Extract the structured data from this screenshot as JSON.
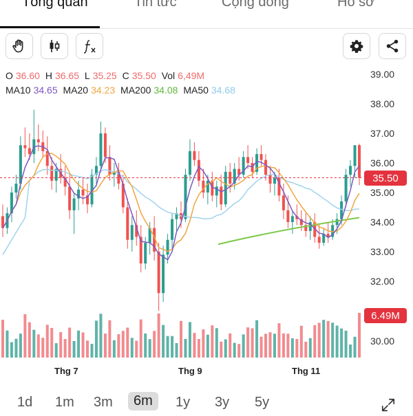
{
  "tabs": [
    {
      "label": "Tổng quan",
      "active": true
    },
    {
      "label": "Tin tức",
      "active": false
    },
    {
      "label": "Cộng đồng",
      "active": false
    },
    {
      "label": "Hồ sơ",
      "active": false
    }
  ],
  "toolbar": {
    "left_icons": [
      "hand-icon",
      "candlestick-icon",
      "function-icon"
    ],
    "right_icons": [
      "gear-icon",
      "share-icon"
    ]
  },
  "ohlc": {
    "o_label": "O",
    "o_value": "36.60",
    "h_label": "H",
    "h_value": "36.65",
    "l_label": "L",
    "l_value": "35.25",
    "c_label": "C",
    "c_value": "35.50",
    "vol_label": "Vol",
    "vol_value": "6,49M"
  },
  "ma": {
    "ma10_label": "MA10",
    "ma10_value": "34.65",
    "ma20_label": "MA20",
    "ma20_value": "34.23",
    "ma200_label": "MA200",
    "ma200_value": "34.08",
    "ma50_label": "MA50",
    "ma50_value": "34.68"
  },
  "colors": {
    "up": "#2a9d8f",
    "down": "#ef5350",
    "vol_up": "#5fb3a8",
    "vol_down": "#f28b8f",
    "ma10": "#7e57c2",
    "ma20": "#f0a540",
    "ma200": "#7cc94a",
    "ma50": "#9fd3ee",
    "price_line": "#e3333e",
    "o_val": "#ef6b6b"
  },
  "price_tag": "35.50",
  "volume_tag": "6.49M",
  "chart_data": {
    "type": "candlestick",
    "y_axis_ticks": [
      "39.00",
      "38.00",
      "37.00",
      "36.00",
      "35.00",
      "34.00",
      "33.00",
      "32.00",
      "30.00"
    ],
    "x_labels": [
      "Thg 7",
      "Thg 9",
      "Thg 11"
    ],
    "ylim": [
      30.0,
      39.0
    ],
    "current_price": 35.5,
    "candles_ohlc_approx": [
      [
        34.2,
        34.6,
        33.5,
        33.8
      ],
      [
        33.8,
        34.5,
        33.6,
        34.3
      ],
      [
        34.3,
        35.2,
        34.0,
        35.0
      ],
      [
        35.0,
        35.6,
        34.8,
        35.3
      ],
      [
        35.3,
        36.9,
        35.1,
        36.6
      ],
      [
        36.6,
        37.2,
        36.2,
        36.5
      ],
      [
        36.5,
        37.0,
        36.1,
        36.3
      ],
      [
        36.3,
        37.8,
        36.0,
        36.8
      ],
      [
        36.8,
        37.3,
        36.4,
        36.7
      ],
      [
        36.7,
        37.1,
        36.2,
        36.4
      ],
      [
        36.4,
        36.9,
        35.6,
        35.9
      ],
      [
        35.9,
        36.2,
        35.1,
        35.4
      ],
      [
        35.4,
        36.0,
        35.0,
        35.8
      ],
      [
        35.8,
        36.3,
        35.3,
        35.5
      ],
      [
        35.5,
        35.9,
        34.9,
        35.2
      ],
      [
        35.2,
        35.6,
        34.1,
        34.4
      ],
      [
        34.4,
        35.0,
        33.6,
        34.8
      ],
      [
        34.8,
        35.4,
        34.4,
        35.1
      ],
      [
        35.1,
        35.5,
        34.6,
        34.9
      ],
      [
        34.9,
        35.3,
        34.3,
        34.6
      ],
      [
        34.6,
        35.8,
        34.5,
        35.6
      ],
      [
        35.6,
        36.2,
        35.2,
        35.9
      ],
      [
        35.9,
        37.4,
        35.7,
        37.0
      ],
      [
        37.0,
        37.2,
        36.0,
        36.2
      ],
      [
        36.2,
        36.6,
        35.4,
        35.6
      ],
      [
        35.6,
        36.0,
        35.2,
        35.7
      ],
      [
        35.7,
        36.0,
        35.1,
        35.3
      ],
      [
        35.3,
        35.6,
        34.3,
        34.5
      ],
      [
        34.5,
        34.8,
        33.1,
        33.4
      ],
      [
        33.4,
        34.2,
        33.0,
        33.9
      ],
      [
        33.9,
        34.4,
        33.2,
        33.5
      ],
      [
        33.5,
        33.9,
        32.3,
        32.6
      ],
      [
        32.6,
        33.5,
        32.4,
        33.3
      ],
      [
        33.3,
        34.0,
        32.9,
        33.8
      ],
      [
        33.8,
        34.2,
        32.7,
        33.0
      ],
      [
        33.0,
        33.3,
        31.0,
        31.6
      ],
      [
        31.6,
        33.2,
        31.3,
        32.9
      ],
      [
        32.9,
        33.6,
        32.6,
        33.4
      ],
      [
        33.4,
        34.3,
        33.1,
        34.1
      ],
      [
        34.1,
        34.5,
        33.7,
        34.3
      ],
      [
        34.3,
        34.7,
        33.8,
        34.1
      ],
      [
        34.1,
        35.8,
        34.0,
        35.6
      ],
      [
        35.6,
        36.8,
        35.4,
        36.4
      ],
      [
        36.4,
        36.7,
        35.9,
        36.1
      ],
      [
        36.1,
        36.4,
        35.2,
        35.4
      ],
      [
        35.4,
        35.8,
        34.8,
        35.0
      ],
      [
        35.0,
        35.6,
        34.6,
        35.4
      ],
      [
        35.4,
        35.7,
        34.7,
        34.9
      ],
      [
        34.9,
        35.4,
        34.5,
        35.2
      ],
      [
        35.2,
        35.6,
        34.4,
        34.6
      ],
      [
        34.6,
        35.9,
        34.5,
        35.7
      ],
      [
        35.7,
        36.0,
        35.0,
        35.3
      ],
      [
        35.3,
        36.0,
        35.1,
        35.8
      ],
      [
        35.8,
        36.2,
        35.4,
        35.6
      ],
      [
        35.6,
        36.4,
        35.5,
        36.2
      ],
      [
        36.2,
        36.6,
        35.8,
        36.0
      ],
      [
        36.0,
        36.2,
        35.5,
        35.7
      ],
      [
        35.7,
        36.5,
        35.6,
        36.3
      ],
      [
        36.3,
        36.6,
        35.9,
        36.1
      ],
      [
        36.1,
        36.3,
        35.4,
        35.6
      ],
      [
        35.6,
        35.9,
        35.0,
        35.3
      ],
      [
        35.3,
        35.7,
        34.9,
        35.5
      ],
      [
        35.5,
        35.8,
        34.7,
        34.9
      ],
      [
        34.9,
        35.3,
        34.1,
        34.4
      ],
      [
        34.4,
        34.9,
        33.8,
        34.0
      ],
      [
        34.0,
        34.4,
        33.6,
        34.2
      ],
      [
        34.2,
        34.6,
        33.9,
        34.1
      ],
      [
        34.1,
        34.4,
        33.7,
        33.9
      ],
      [
        33.9,
        34.3,
        33.5,
        33.7
      ],
      [
        33.7,
        34.2,
        33.4,
        34.0
      ],
      [
        34.0,
        34.3,
        33.3,
        33.5
      ],
      [
        33.5,
        33.9,
        33.1,
        33.3
      ],
      [
        33.3,
        33.8,
        33.2,
        33.6
      ],
      [
        33.6,
        34.0,
        33.3,
        33.5
      ],
      [
        33.5,
        34.1,
        33.4,
        33.9
      ],
      [
        33.9,
        34.3,
        33.6,
        34.1
      ],
      [
        34.1,
        34.9,
        33.9,
        34.7
      ],
      [
        34.7,
        35.8,
        34.5,
        35.6
      ],
      [
        35.6,
        36.1,
        35.2,
        35.9
      ],
      [
        35.9,
        36.6,
        35.5,
        36.6
      ],
      [
        36.6,
        36.65,
        35.25,
        35.5
      ]
    ]
  },
  "ranges": [
    {
      "label": "1d",
      "active": false
    },
    {
      "label": "1m",
      "active": false
    },
    {
      "label": "3m",
      "active": false
    },
    {
      "label": "6m",
      "active": true
    },
    {
      "label": "1y",
      "active": false
    },
    {
      "label": "3y",
      "active": false
    },
    {
      "label": "5y",
      "active": false
    }
  ]
}
